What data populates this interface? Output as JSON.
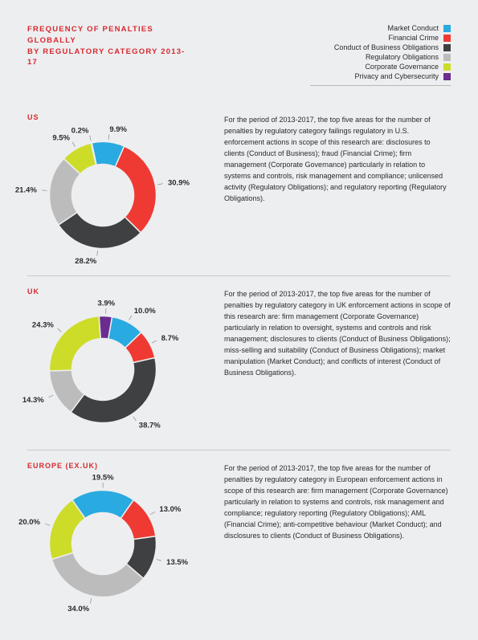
{
  "title": "FREQUENCY OF PENALTIES GLOBALLY\nBY REGULATORY CATEGORY 2013-17",
  "legend": [
    {
      "label": "Market Conduct",
      "color": "#29aae1"
    },
    {
      "label": "Financial Crime",
      "color": "#ee3a33"
    },
    {
      "label": "Conduct of Business Obligations",
      "color": "#3f4041"
    },
    {
      "label": "Regulatory Obligations",
      "color": "#bdbcbc"
    },
    {
      "label": "Corporate Governance",
      "color": "#cddc29"
    },
    {
      "label": "Privacy and Cybersecurity",
      "color": "#6a2c8f"
    }
  ],
  "background_color": "#edeef0",
  "accent_color": "#d8292f",
  "label_fontsize": 9.5,
  "donut": {
    "inner_ratio": 0.55,
    "outer_ratio": 0.95
  },
  "sections": [
    {
      "region": "US",
      "slices": [
        {
          "value": 9.9,
          "color": "#29aae1",
          "label": "9.9%"
        },
        {
          "value": 30.9,
          "color": "#ee3a33",
          "label": "30.9%"
        },
        {
          "value": 28.2,
          "color": "#3f4041",
          "label": "28.2%"
        },
        {
          "value": 21.4,
          "color": "#bdbcbc",
          "label": "21.4%"
        },
        {
          "value": 9.5,
          "color": "#cddc29",
          "label": "9.5%"
        },
        {
          "value": 0.2,
          "color": "#6a2c8f",
          "label": "0.2%"
        }
      ],
      "start_angle_deg": -12,
      "text": "For the period of 2013-2017, the top five areas for the number of penalties by regulatory category failings regulatory in U.S. enforcement actions in scope of this research are: disclosures to clients (Conduct of Business); fraud (Financial Crime); firm management (Corporate Governance) particularly in relation to systems and controls, risk management and compliance; unlicensed activity (Regulatory Obligations); and regulatory reporting (Regulatory Obligations)."
    },
    {
      "region": "UK",
      "slices": [
        {
          "value": 10.0,
          "color": "#29aae1",
          "label": "10.0%"
        },
        {
          "value": 8.7,
          "color": "#ee3a33",
          "label": "8.7%"
        },
        {
          "value": 38.7,
          "color": "#3f4041",
          "label": "38.7%"
        },
        {
          "value": 14.3,
          "color": "#bdbcbc",
          "label": "14.3%"
        },
        {
          "value": 24.3,
          "color": "#cddc29",
          "label": "24.3%"
        },
        {
          "value": 3.9,
          "color": "#6a2c8f",
          "label": "3.9%"
        }
      ],
      "start_angle_deg": 10,
      "text": "For the period of 2013-2017, the top five areas for the number of penalties by regulatory category in UK enforcement actions in scope of this research are: firm management (Corporate Governance) particularly in relation to oversight, systems and controls and risk management; disclosures to clients (Conduct of Business Obligations); miss-selling and suitability (Conduct of Business Obligations); market manipulation (Market Conduct); and conflicts of interest (Conduct of Business Obligations)."
    },
    {
      "region": "EUROPE (EX.UK)",
      "slices": [
        {
          "value": 19.5,
          "color": "#29aae1",
          "label": "19.5%"
        },
        {
          "value": 13.0,
          "color": "#ee3a33",
          "label": "13.0%"
        },
        {
          "value": 13.5,
          "color": "#3f4041",
          "label": "13.5%"
        },
        {
          "value": 34.0,
          "color": "#bdbcbc",
          "label": "34.0%"
        },
        {
          "value": 20.0,
          "color": "#cddc29",
          "label": "20.0%"
        }
      ],
      "start_angle_deg": -35,
      "text": "For the period of 2013-2017, the top five areas for the number of penalties by regulatory category in European enforcement actions in scope of this research are: firm management (Corporate Governance) particularly in relation to systems and controls, risk management and compliance; regulatory reporting (Regulatory Obligations); AML (Financial Crime); anti-competitive behaviour (Market Conduct); and disclosures to clients (Conduct of Business Obligations)."
    }
  ]
}
